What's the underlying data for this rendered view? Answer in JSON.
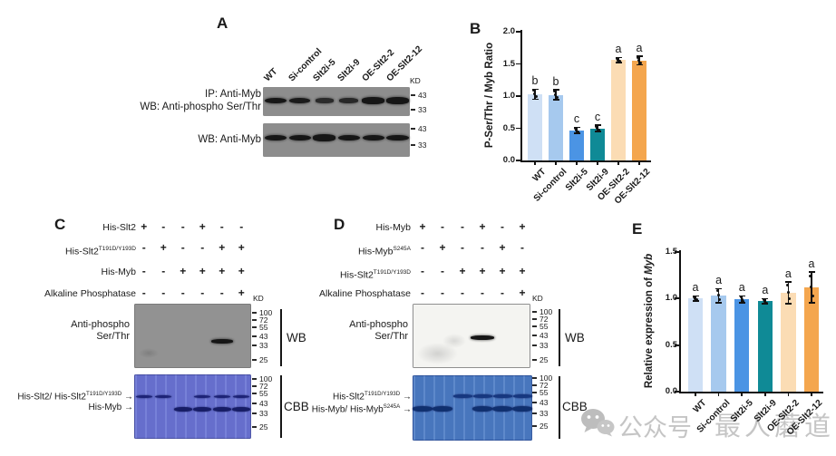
{
  "figure": {
    "background": "#ffffff"
  },
  "watermark": {
    "icon": "wechat-icon",
    "prefix": "公众号",
    "suffix": "最人蘑道"
  },
  "panelA": {
    "label": "A",
    "kd": "KD",
    "lane_labels": [
      "WT",
      "Si-control",
      "Slt2i-5",
      "Slt2i-9",
      "OE-Slt2-2",
      "OE-Slt2-12"
    ],
    "blot1_label_line1": "IP: Anti-Myb",
    "blot1_label_line2": "WB: Anti-phospho Ser/Thr",
    "blot2_label": "WB: Anti-Myb",
    "markers": [
      "43",
      "33"
    ],
    "blot1_band_intensity": [
      1,
      0.9,
      0.5,
      0.55,
      1.1,
      1.1
    ],
    "blot2_band_intensity": [
      1,
      1,
      1.1,
      1,
      1,
      1.05
    ]
  },
  "panelB": {
    "label": "B"
  },
  "panelC": {
    "label": "C",
    "kd": "KD",
    "wb_tag": "WB",
    "cbb_tag": "CBB",
    "arrow_glyph": "→",
    "markers": [
      "100",
      "72",
      "55",
      "43",
      "33",
      "25"
    ],
    "rows": [
      {
        "base": "His-Slt2",
        "sup": "",
        "signs": [
          "+",
          "-",
          "-",
          "+",
          "-",
          "-"
        ]
      },
      {
        "base": "His-Slt2",
        "sup": "T191D/Y193D",
        "signs": [
          "-",
          "+",
          "-",
          "-",
          "+",
          "+"
        ]
      },
      {
        "base": "His-Myb",
        "sup": "",
        "signs": [
          "-",
          "-",
          "+",
          "+",
          "+",
          "+"
        ]
      },
      {
        "base": "Alkaline Phosphatase",
        "sup": "",
        "signs": [
          "-",
          "-",
          "-",
          "-",
          "-",
          "+"
        ]
      }
    ],
    "wb_label_line1": "Anti-phospho",
    "wb_label_line2": "Ser/Thr",
    "arrow_labels": [
      {
        "segments": [
          {
            "t": "His-Slt2/ His-Slt2"
          },
          {
            "t": "T191D/Y193D",
            "sup": true
          }
        ]
      },
      {
        "segments": [
          {
            "t": "His-Myb"
          }
        ]
      }
    ],
    "wb_band_lanes": [
      4
    ],
    "cbb_upper_band_lanes": [
      0,
      1,
      3,
      4,
      5
    ],
    "cbb_lower_band_lanes": [
      2,
      3,
      4,
      5
    ]
  },
  "panelD": {
    "label": "D",
    "kd": "KD",
    "wb_tag": "WB",
    "cbb_tag": "CBB",
    "arrow_glyph": "→",
    "markers": [
      "100",
      "72",
      "55",
      "43",
      "33",
      "25"
    ],
    "rows": [
      {
        "base": "His-Myb",
        "sup": "",
        "signs": [
          "+",
          "-",
          "-",
          "+",
          "-",
          "+"
        ]
      },
      {
        "base": "His-Myb",
        "sup": "S245A",
        "signs": [
          "-",
          "+",
          "-",
          "-",
          "+",
          "-"
        ]
      },
      {
        "base": "His-Slt2",
        "sup": "T191D/Y193D",
        "signs": [
          "-",
          "-",
          "+",
          "+",
          "+",
          "+"
        ]
      },
      {
        "base": "Alkaline Phosphatase",
        "sup": "",
        "signs": [
          "-",
          "-",
          "-",
          "-",
          "-",
          "+"
        ]
      }
    ],
    "wb_label_line1": "Anti-phospho",
    "wb_label_line2": "Ser/Thr",
    "arrow_labels": [
      {
        "segments": [
          {
            "t": "His-Slt2"
          },
          {
            "t": "T191D/Y193D",
            "sup": true
          }
        ]
      },
      {
        "segments": [
          {
            "t": "His-Myb/ His-Myb"
          },
          {
            "t": "S245A",
            "sup": true
          }
        ]
      }
    ],
    "wb_band_lanes": [
      3
    ],
    "cbb_upper_band_lanes": [
      2,
      3,
      4,
      5
    ],
    "cbb_lower_band_lanes": [
      0,
      1,
      3,
      4,
      5
    ]
  },
  "panelE": {
    "label": "E"
  },
  "chart_data": [
    {
      "id": "B",
      "type": "bar",
      "title": "",
      "ylabel": "P-Ser/Thr / Myb Ratio",
      "xlabel": "",
      "categories": [
        "WT",
        "Si-control",
        "Slt2i-5",
        "Slt2i-9",
        "OE-Slt2-2",
        "OE-Slt2-12"
      ],
      "values": [
        1.03,
        1.02,
        0.47,
        0.5,
        1.56,
        1.55
      ],
      "errors": [
        0.08,
        0.08,
        0.05,
        0.05,
        0.04,
        0.07
      ],
      "sig_letters": [
        "b",
        "b",
        "c",
        "c",
        "a",
        "a"
      ],
      "bar_colors": [
        "#cfe0f5",
        "#a6c9ee",
        "#4b94e4",
        "#0f8a96",
        "#fbdcb4",
        "#f4a64e"
      ],
      "ylim": [
        0,
        2.0
      ],
      "yticks": [
        0,
        0.5,
        1,
        1.5,
        2
      ],
      "grid": false,
      "legend_position": "none"
    },
    {
      "id": "E",
      "type": "bar",
      "title": "",
      "ylabel_plain": "Relative expression of ",
      "ylabel_italic": "Myb",
      "xlabel": "",
      "categories": [
        "WT",
        "Si-control",
        "Slt2i-5",
        "Slt2i-9",
        "OE-Slt2-2",
        "OE-Slt2-12"
      ],
      "values": [
        1.0,
        1.03,
        0.99,
        0.97,
        1.06,
        1.12
      ],
      "errors": [
        0.03,
        0.08,
        0.04,
        0.03,
        0.12,
        0.17
      ],
      "sig_letters": [
        "a",
        "a",
        "a",
        "a",
        "a",
        "a"
      ],
      "bar_colors": [
        "#cfe0f5",
        "#a6c9ee",
        "#4b94e4",
        "#0f8a96",
        "#fbdcb4",
        "#f4a64e"
      ],
      "ylim": [
        0,
        1.5
      ],
      "yticks": [
        0,
        0.5,
        1,
        1.5
      ],
      "grid": false,
      "legend_position": "none"
    }
  ]
}
